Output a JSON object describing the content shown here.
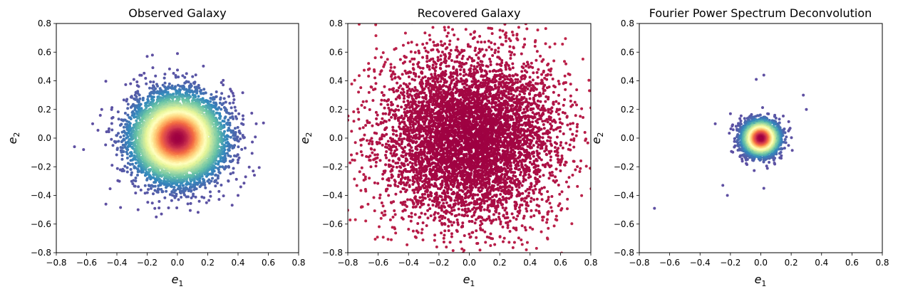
{
  "chart_data": [
    {
      "type": "scatter",
      "title": "Observed Galaxy",
      "xlabel": "e",
      "xlabel_sub": "1",
      "ylabel": "e",
      "ylabel_sub": "2",
      "xlim": [
        -0.8,
        0.8
      ],
      "ylim": [
        -0.8,
        0.8
      ],
      "xticks": [
        "−0.8",
        "−0.6",
        "−0.4",
        "−0.2",
        "0.0",
        "0.2",
        "0.4",
        "0.6",
        "0.8"
      ],
      "yticks": [
        "−0.8",
        "−0.6",
        "−0.4",
        "−0.2",
        "0.0",
        "0.2",
        "0.4",
        "0.6",
        "0.8"
      ],
      "grid": false,
      "colormap": "Spectral_r (density)",
      "distribution": {
        "center": [
          0.0,
          0.0
        ],
        "sigma": 0.15,
        "n_points": 7000
      },
      "outliers": [
        [
          -0.68,
          -0.06
        ],
        [
          -0.62,
          -0.08
        ],
        [
          -0.56,
          0.1
        ],
        [
          -0.5,
          0.2
        ],
        [
          0.0,
          0.59
        ],
        [
          -0.2,
          0.57
        ],
        [
          0.52,
          0.1
        ],
        [
          -0.26,
          -0.5
        ],
        [
          -0.14,
          -0.55
        ],
        [
          0.4,
          -0.4
        ],
        [
          0.5,
          -0.23
        ]
      ]
    },
    {
      "type": "scatter",
      "title": "Recovered Galaxy",
      "xlabel": "e",
      "xlabel_sub": "1",
      "ylabel": "e",
      "ylabel_sub": "2",
      "xlim": [
        -0.8,
        0.8
      ],
      "ylim": [
        -0.8,
        0.8
      ],
      "xticks": [
        "−0.8",
        "−0.6",
        "−0.4",
        "−0.2",
        "0.0",
        "0.2",
        "0.4",
        "0.6",
        "0.8"
      ],
      "yticks": [
        "−0.8",
        "−0.6",
        "−0.4",
        "−0.2",
        "0.0",
        "0.2",
        "0.4",
        "0.6",
        "0.8"
      ],
      "grid": false,
      "colormap": "Spectral_r (density)",
      "distribution": {
        "center": [
          0.0,
          0.0
        ],
        "sigma": 0.3,
        "n_points": 6000
      },
      "outliers": []
    },
    {
      "type": "scatter",
      "title": "Fourier Power Spectrum Deconvolution",
      "xlabel": "e",
      "xlabel_sub": "1",
      "ylabel": "e",
      "ylabel_sub": "2",
      "xlim": [
        -0.8,
        0.8
      ],
      "ylim": [
        -0.8,
        0.8
      ],
      "xticks": [
        "−0.8",
        "−0.6",
        "−0.4",
        "−0.2",
        "0.0",
        "0.2",
        "0.4",
        "0.6",
        "0.8"
      ],
      "yticks": [
        "−0.8",
        "−0.6",
        "−0.4",
        "−0.2",
        "0.0",
        "0.2",
        "0.4",
        "0.6",
        "0.8"
      ],
      "grid": false,
      "colormap": "Spectral_r (density)",
      "distribution": {
        "center": [
          0.0,
          0.0
        ],
        "sigma": 0.06,
        "n_points": 3000
      },
      "outliers": [
        [
          -0.7,
          -0.49
        ],
        [
          -0.22,
          -0.4
        ],
        [
          -0.25,
          -0.33
        ],
        [
          -0.03,
          0.41
        ],
        [
          0.02,
          0.44
        ],
        [
          0.3,
          0.2
        ],
        [
          0.28,
          0.3
        ],
        [
          0.02,
          -0.35
        ],
        [
          -0.3,
          0.1
        ],
        [
          -0.2,
          0.17
        ]
      ]
    }
  ]
}
